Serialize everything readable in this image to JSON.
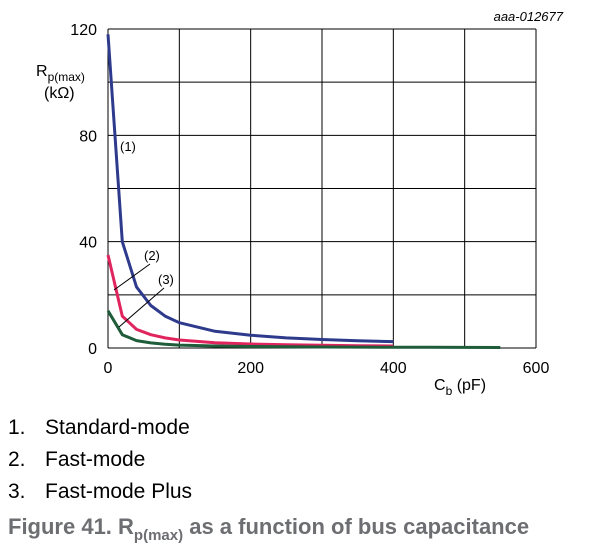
{
  "figure_id": "aaa-012677",
  "chart_data": {
    "type": "line",
    "ylabel_main": "R",
    "ylabel_sub": "p(max)",
    "ylabel_unit": "(kΩ)",
    "xlabel_main": "C",
    "xlabel_sub": "b",
    "xlabel_unit": "(pF)",
    "xlim": [
      0,
      600
    ],
    "ylim": [
      0,
      120
    ],
    "x_ticks": [
      "0",
      "200",
      "400",
      "600"
    ],
    "y_ticks": [
      "0",
      "40",
      "80",
      "120"
    ],
    "grid": true,
    "series": [
      {
        "name": "(1)",
        "color": "#2e3a8c",
        "x": [
          0,
          20,
          40,
          60,
          80,
          100,
          150,
          200,
          250,
          300,
          350,
          400
        ],
        "y": [
          118,
          40,
          23,
          16,
          12,
          9.5,
          6.3,
          4.8,
          3.8,
          3.2,
          2.7,
          2.4
        ]
      },
      {
        "name": "(2)",
        "color": "#e0245e",
        "x": [
          0,
          20,
          40,
          60,
          80,
          100,
          150,
          200,
          250,
          300,
          350,
          400
        ],
        "y": [
          35,
          12,
          7,
          5,
          3.8,
          3,
          2,
          1.5,
          1.2,
          1,
          0.85,
          0.75
        ]
      },
      {
        "name": "(3)",
        "color": "#1f5c3a",
        "x": [
          0,
          20,
          40,
          60,
          80,
          100,
          150,
          200,
          250,
          300,
          350,
          400,
          450,
          500,
          550
        ],
        "y": [
          14,
          5,
          2.8,
          1.9,
          1.4,
          1.1,
          0.75,
          0.55,
          0.45,
          0.38,
          0.32,
          0.28,
          0.25,
          0.22,
          0.2
        ]
      }
    ]
  },
  "notes": [
    {
      "num": "1.",
      "text": "Standard-mode"
    },
    {
      "num": "2.",
      "text": "Fast-mode"
    },
    {
      "num": "3.",
      "text": "Fast-mode Plus"
    }
  ],
  "caption": {
    "prefix": "Figure 41.  R",
    "sub": "p(max)",
    "suffix": " as a function of bus capacitance"
  }
}
